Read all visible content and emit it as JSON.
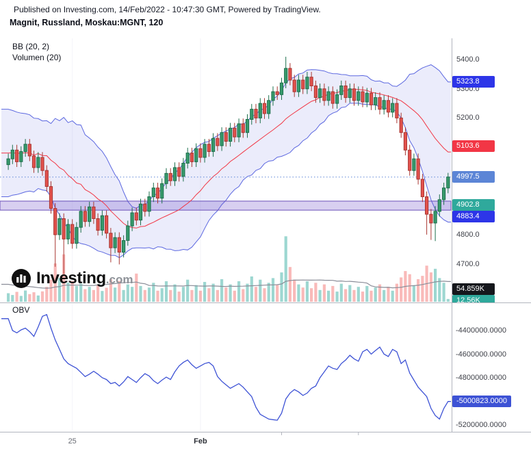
{
  "header": {
    "published_line": "Published on Investing.com, 14/Feb/2022 - 10:47:30 GMT, Powered by TradingView.",
    "instrument_line": "Magnit, Russland, Moskau:MGNT, 120"
  },
  "main_pane": {
    "bb_label": "BB (20, 2)",
    "volume_label": "Volumen (20)"
  },
  "watermark": {
    "brand": "Investing",
    "suffix": ".com"
  },
  "obv_pane": {
    "label": "OBV",
    "ticks": [
      -4400000,
      -4600000,
      -4800000,
      -5000000,
      -5200000
    ],
    "badge": {
      "value": -5000823,
      "color": "#3d52d5"
    }
  },
  "price_axis": {
    "ticks": [
      5400,
      5300,
      5200,
      5100,
      5000,
      4900,
      4800,
      4700
    ],
    "badges": [
      {
        "value": 5323.8,
        "color": "#2d35e8"
      },
      {
        "value": 5103.6,
        "color": "#f23645"
      },
      {
        "value": 4997.5,
        "color": "#5c85d6"
      },
      {
        "value": 4902.8,
        "color": "#2fa99c"
      },
      {
        "value": 4883.4,
        "color": "#2d35e8"
      }
    ]
  },
  "volume_badges": [
    {
      "label": "54.859K",
      "value_k": 54.859,
      "color": "#15171c"
    },
    {
      "label": "12.56K",
      "value_k": 12.56,
      "color": "#2fa99c"
    }
  ],
  "time_axis": {
    "labels": [
      {
        "text": "25",
        "bar": 15,
        "bold": false
      },
      {
        "text": "Feb",
        "bar": 45,
        "bold": true
      }
    ],
    "minor_tick_bars": [
      64,
      82
    ]
  },
  "colors": {
    "candle_up": "#379a6c",
    "candle_up_border": "#1d6f4c",
    "candle_down": "#e2514c",
    "candle_down_border": "#a93732",
    "bb_line": "#5b67e0",
    "bb_fill": "rgba(98,110,224,0.13)",
    "bb_mid": "#f23645",
    "volume_up": "rgba(38,166,154,0.45)",
    "volume_down": "rgba(239,83,80,0.40)",
    "volume_ma": "#8a8d98",
    "obv_line": "#3d52d5",
    "zone_fill": "rgba(116,82,201,0.28)",
    "zone_border": "#6a4fb8",
    "last_price_line": "#5c85d6",
    "frame": "#b2b5be",
    "grid": "#f4f4f8"
  },
  "chart_data": [
    {
      "type": "candlestick",
      "pane": "price",
      "title": "Magnit, Russland, Moskau:MGNT, 120",
      "indicators": [
        "BB (20, 2)",
        "Volumen (20)"
      ],
      "ylim": [
        4570,
        5473
      ],
      "last_price": 4997.5,
      "zone": {
        "top": 4915,
        "bottom": 4884
      },
      "candles": [
        [
          5040,
          5078,
          5022,
          5060
        ],
        [
          5060,
          5108,
          5042,
          5090
        ],
        [
          5090,
          5108,
          5032,
          5050
        ],
        [
          5050,
          5103,
          5032,
          5085
        ],
        [
          5085,
          5128,
          5067,
          5110
        ],
        [
          5110,
          5128,
          5052,
          5070
        ],
        [
          5070,
          5088,
          5012,
          5030
        ],
        [
          5030,
          5083,
          5012,
          5065
        ],
        [
          5065,
          5083,
          5002,
          5020
        ],
        [
          5020,
          5038,
          4947,
          4965
        ],
        [
          4965,
          4983,
          4872,
          4890
        ],
        [
          4890,
          4908,
          4690,
          4800
        ],
        [
          4800,
          4873,
          4782,
          4855
        ],
        [
          4855,
          4873,
          4665,
          4785
        ],
        [
          4785,
          4853,
          4767,
          4835
        ],
        [
          4835,
          4853,
          4752,
          4770
        ],
        [
          4770,
          4843,
          4752,
          4825
        ],
        [
          4825,
          4898,
          4807,
          4880
        ],
        [
          4880,
          4898,
          4827,
          4845
        ],
        [
          4845,
          4913,
          4827,
          4895
        ],
        [
          4895,
          4913,
          4837,
          4855
        ],
        [
          4855,
          4873,
          4797,
          4815
        ],
        [
          4815,
          4883,
          4797,
          4865
        ],
        [
          4865,
          4883,
          4787,
          4805
        ],
        [
          4805,
          4823,
          4705,
          4755
        ],
        [
          4755,
          4808,
          4737,
          4790
        ],
        [
          4790,
          4808,
          4698,
          4740
        ],
        [
          4740,
          4798,
          4722,
          4780
        ],
        [
          4780,
          4848,
          4762,
          4830
        ],
        [
          4830,
          4893,
          4812,
          4875
        ],
        [
          4875,
          4893,
          4832,
          4850
        ],
        [
          4850,
          4923,
          4832,
          4905
        ],
        [
          4905,
          4923,
          4862,
          4880
        ],
        [
          4880,
          4948,
          4862,
          4930
        ],
        [
          4930,
          4978,
          4912,
          4960
        ],
        [
          4960,
          4978,
          4907,
          4925
        ],
        [
          4925,
          4993,
          4907,
          4975
        ],
        [
          4975,
          5028,
          4957,
          5010
        ],
        [
          5010,
          5028,
          4967,
          4985
        ],
        [
          4985,
          5048,
          4967,
          5030
        ],
        [
          5030,
          5048,
          4982,
          5000
        ],
        [
          5000,
          5063,
          4982,
          5045
        ],
        [
          5045,
          5098,
          5027,
          5080
        ],
        [
          5080,
          5098,
          5032,
          5050
        ],
        [
          5050,
          5113,
          5032,
          5095
        ],
        [
          5095,
          5113,
          5047,
          5065
        ],
        [
          5065,
          5128,
          5047,
          5110
        ],
        [
          5110,
          5128,
          5067,
          5085
        ],
        [
          5085,
          5148,
          5067,
          5130
        ],
        [
          5130,
          5148,
          5087,
          5105
        ],
        [
          5105,
          5168,
          5087,
          5150
        ],
        [
          5150,
          5168,
          5102,
          5120
        ],
        [
          5120,
          5183,
          5102,
          5165
        ],
        [
          5165,
          5183,
          5117,
          5135
        ],
        [
          5135,
          5198,
          5117,
          5180
        ],
        [
          5180,
          5198,
          5132,
          5150
        ],
        [
          5150,
          5213,
          5132,
          5195
        ],
        [
          5195,
          5248,
          5177,
          5230
        ],
        [
          5230,
          5248,
          5182,
          5200
        ],
        [
          5200,
          5268,
          5182,
          5250
        ],
        [
          5250,
          5268,
          5197,
          5215
        ],
        [
          5215,
          5278,
          5197,
          5260
        ],
        [
          5260,
          5308,
          5242,
          5290
        ],
        [
          5290,
          5308,
          5262,
          5280
        ],
        [
          5280,
          5338,
          5262,
          5320
        ],
        [
          5320,
          5410,
          5302,
          5370
        ],
        [
          5370,
          5388,
          5312,
          5330
        ],
        [
          5330,
          5348,
          5272,
          5290
        ],
        [
          5290,
          5348,
          5272,
          5330
        ],
        [
          5330,
          5348,
          5282,
          5300
        ],
        [
          5300,
          5358,
          5282,
          5340
        ],
        [
          5340,
          5358,
          5292,
          5310
        ],
        [
          5310,
          5328,
          5252,
          5270
        ],
        [
          5270,
          5318,
          5252,
          5300
        ],
        [
          5300,
          5318,
          5242,
          5260
        ],
        [
          5260,
          5308,
          5242,
          5290
        ],
        [
          5290,
          5308,
          5232,
          5250
        ],
        [
          5250,
          5298,
          5232,
          5280
        ],
        [
          5280,
          5328,
          5262,
          5310
        ],
        [
          5310,
          5328,
          5252,
          5270
        ],
        [
          5270,
          5318,
          5252,
          5300
        ],
        [
          5300,
          5318,
          5242,
          5260
        ],
        [
          5260,
          5308,
          5242,
          5290
        ],
        [
          5290,
          5308,
          5237,
          5255
        ],
        [
          5255,
          5303,
          5237,
          5285
        ],
        [
          5285,
          5303,
          5227,
          5245
        ],
        [
          5245,
          5288,
          5227,
          5270
        ],
        [
          5270,
          5288,
          5212,
          5230
        ],
        [
          5230,
          5278,
          5212,
          5260
        ],
        [
          5260,
          5278,
          5202,
          5220
        ],
        [
          5220,
          5268,
          5202,
          5250
        ],
        [
          5250,
          5268,
          5182,
          5200
        ],
        [
          5200,
          5218,
          5132,
          5150
        ],
        [
          5150,
          5168,
          5072,
          5090
        ],
        [
          5090,
          5108,
          5002,
          5020
        ],
        [
          5020,
          5078,
          5002,
          5060
        ],
        [
          5060,
          5078,
          4972,
          4990
        ],
        [
          4990,
          5008,
          4912,
          4930
        ],
        [
          4930,
          4948,
          4800,
          4870
        ],
        [
          4870,
          4888,
          4782,
          4840
        ],
        [
          4840,
          4898,
          4778,
          4880
        ],
        [
          4880,
          4938,
          4862,
          4920
        ],
        [
          4920,
          4978,
          4902,
          4960
        ],
        [
          4960,
          5012,
          4942,
          4997.5
        ]
      ],
      "volumes_k": [
        38,
        30,
        44,
        26,
        50,
        34,
        42,
        28,
        46,
        66,
        98,
        170,
        105,
        210,
        85,
        92,
        70,
        80,
        56,
        66,
        52,
        74,
        48,
        62,
        100,
        63,
        92,
        52,
        77,
        66,
        125,
        70,
        52,
        63,
        84,
        49,
        60,
        91,
        52,
        77,
        45,
        66,
        98,
        52,
        74,
        49,
        88,
        60,
        80,
        52,
        100,
        63,
        77,
        49,
        91,
        56,
        80,
        112,
        66,
        98,
        60,
        84,
        105,
        74,
        130,
        290,
        154,
        98,
        77,
        63,
        91,
        60,
        84,
        52,
        77,
        49,
        70,
        45,
        80,
        56,
        74,
        52,
        66,
        45,
        70,
        49,
        63,
        77,
        52,
        66,
        49,
        80,
        108,
        136,
        122,
        70,
        100,
        115,
        160,
        130,
        146,
        105,
        84,
        12.56
      ]
    },
    {
      "type": "line",
      "pane": "obv",
      "name": "OBV",
      "ylim": [
        -5252000,
        -4174000
      ],
      "values": [
        -4300000,
        -4400000,
        -4420000,
        -4395000,
        -4380000,
        -4410000,
        -4450000,
        -4370000,
        -4280000,
        -4265000,
        -4380000,
        -4480000,
        -4560000,
        -4640000,
        -4680000,
        -4700000,
        -4720000,
        -4755000,
        -4790000,
        -4770000,
        -4745000,
        -4770000,
        -4800000,
        -4815000,
        -4850000,
        -4840000,
        -4870000,
        -4835000,
        -4790000,
        -4815000,
        -4840000,
        -4800000,
        -4765000,
        -4785000,
        -4825000,
        -4850000,
        -4820000,
        -4795000,
        -4815000,
        -4750000,
        -4700000,
        -4670000,
        -4650000,
        -4690000,
        -4720000,
        -4700000,
        -4680000,
        -4670000,
        -4700000,
        -4790000,
        -4830000,
        -4860000,
        -4890000,
        -4870000,
        -4850000,
        -4880000,
        -4920000,
        -4960000,
        -5050000,
        -5110000,
        -5130000,
        -5150000,
        -5155000,
        -5160000,
        -5100000,
        -4980000,
        -4930000,
        -4900000,
        -4920000,
        -4950000,
        -4930000,
        -4890000,
        -4870000,
        -4800000,
        -4750000,
        -4700000,
        -4720000,
        -4730000,
        -4680000,
        -4650000,
        -4610000,
        -4640000,
        -4660000,
        -4580000,
        -4560000,
        -4600000,
        -4570000,
        -4540000,
        -4600000,
        -4620000,
        -4560000,
        -4580000,
        -4680000,
        -4650000,
        -4760000,
        -4820000,
        -4880000,
        -4920000,
        -4960000,
        -5060000,
        -5120000,
        -5150000,
        -5060000,
        -5000823
      ]
    }
  ]
}
